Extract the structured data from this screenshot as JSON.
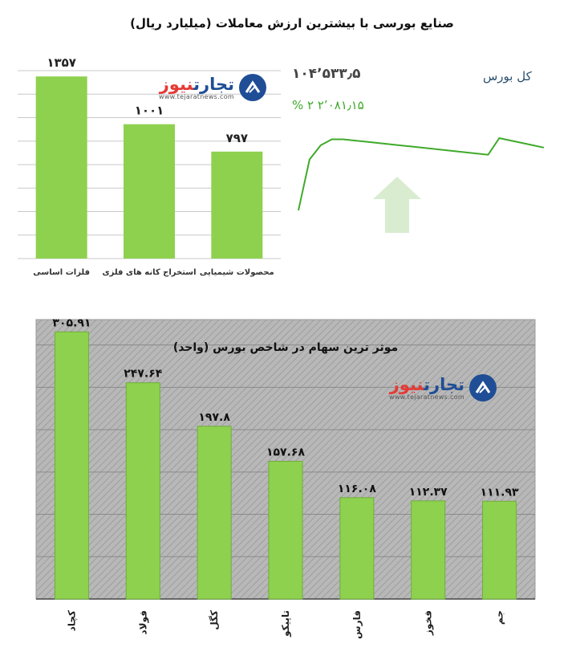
{
  "page_title": "صنایع بورسی با بیشترین ارزش معاملات  (میلیارد ریال)",
  "logo": {
    "name_part1": "تجارت",
    "name_part2": "نیوز",
    "site": "www.tejaratnews.com"
  },
  "tse": {
    "label": "کل بورس",
    "index_value": "۱۰۴٬۵۳۳٫۵",
    "change_text": "۲٬۰۸۱٫۱۵  ۲ %",
    "color": "#3faa2b",
    "arrow_color": "#d9ecd0"
  },
  "chart_data": [
    {
      "type": "bar",
      "title": "",
      "categories": [
        "فلزات اساسی",
        "استخراج کانه های فلزی",
        "محصولات شیمیایی"
      ],
      "values": [
        1357,
        1001,
        797
      ],
      "value_labels": [
        "۱۳۵۷",
        "۱۰۰۱",
        "۷۹۷"
      ],
      "ylim": [
        0,
        1400
      ],
      "grid": true,
      "bar_color": "#8ed14f"
    },
    {
      "type": "line",
      "title": "",
      "series": [
        {
          "values": [
            20,
            63,
            75,
            80,
            80,
            79,
            78,
            77,
            76,
            75,
            74,
            73,
            72,
            71,
            70,
            69,
            68,
            67,
            81,
            79,
            77,
            75,
            73
          ]
        }
      ],
      "grid": false,
      "line_color": "#3faa2b"
    },
    {
      "type": "bar",
      "title": "موثر ترین سهام در شاخص بورس (واحد)",
      "categories": [
        "کچاد",
        "فولاد",
        "کگل",
        "تاپیکو",
        "فارس",
        "فخوز",
        "جم"
      ],
      "values": [
        305.91,
        247.64,
        197.8,
        157.68,
        116.08,
        112.37,
        111.93
      ],
      "value_labels": [
        "۳۰۵.۹۱",
        "۲۴۷.۶۴",
        "۱۹۷.۸",
        "۱۵۷.۶۸",
        "۱۱۶.۰۸",
        "۱۱۲.۳۷",
        "۱۱۱.۹۳"
      ],
      "ylim": [
        0,
        320
      ],
      "grid": true,
      "bar_color": "#8ed14f",
      "background": "hatched-gray"
    }
  ]
}
